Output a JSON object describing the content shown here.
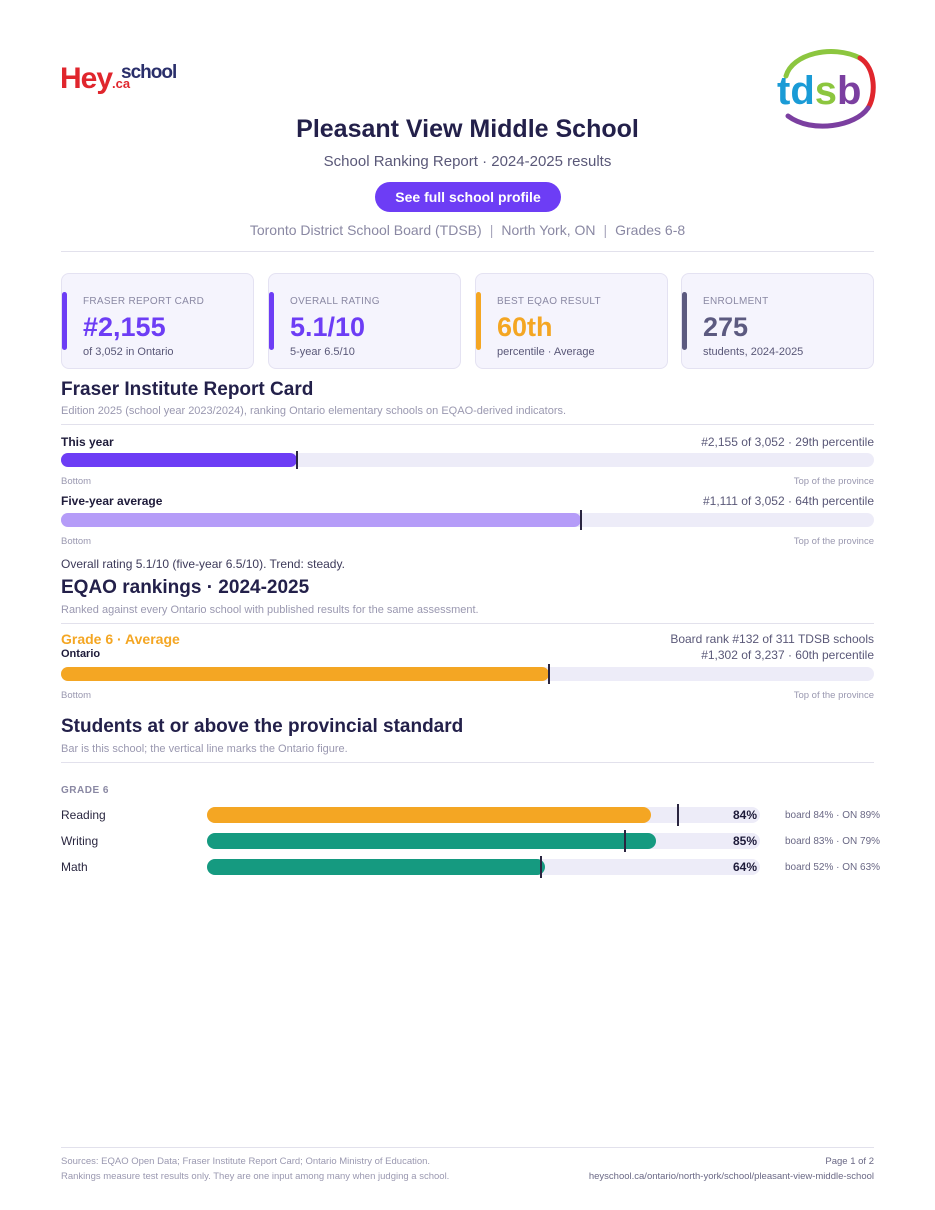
{
  "brand": {
    "logo_part1": "Hey",
    "logo_part2": "school",
    "logo_suffix": ".ca",
    "board_logo": "tdsb"
  },
  "header": {
    "title": "Pleasant View Middle School",
    "subtitle": "School Ranking Report  ·  2024-2025 results",
    "profile_button": "See full school profile",
    "board": "Toronto District School Board (TDSB)",
    "location": "North York, ON",
    "grades": "Grades 6-8"
  },
  "cards": [
    {
      "label": "FRASER REPORT CARD",
      "value": "#2,155",
      "sub": "of 3,052 in Ontario",
      "color": "#6d3df5"
    },
    {
      "label": "OVERALL RATING",
      "value": "5.1/10",
      "sub": "5-year 6.5/10",
      "color": "#6d3df5"
    },
    {
      "label": "BEST EQAO RESULT",
      "value": "60th",
      "sub": "percentile  ·  Average",
      "color": "#f4a623"
    },
    {
      "label": "ENROLMENT",
      "value": "275",
      "sub": "students, 2024-2025",
      "color": "#5c5a80"
    }
  ],
  "fraser": {
    "title": "Fraser Institute Report Card",
    "note": "Edition 2025 (school year 2023/2024), ranking Ontario elementary schools on EQAO-derived indicators.",
    "this_year": {
      "label": "This year",
      "rank": "#2,155 of 3,052  ·  29th percentile",
      "percentile": 29,
      "color": "#6d3df5"
    },
    "five_year": {
      "label": "Five-year average",
      "rank": "#1,111 of 3,052  ·  64th percentile",
      "percentile": 64,
      "color": "#b59cf8"
    },
    "axis_bottom": "Bottom",
    "axis_top": "Top of the province",
    "summary": "Overall rating 5.1/10 (five-year 6.5/10). Trend: steady."
  },
  "eqao": {
    "title": "EQAO rankings  ·  2024-2025",
    "note": "Ranked against every Ontario school with published results for the same assessment.",
    "grade_label": "Grade 6  ·  Average",
    "board_rank": "Board rank #132 of 311 TDSB schools",
    "scope": "Ontario",
    "ontario_rank": "#1,302 of 3,237  ·  60th percentile",
    "percentile": 60,
    "color": "#f4a623",
    "axis_bottom": "Bottom",
    "axis_top": "Top of the province"
  },
  "standard": {
    "title": "Students at or above the provincial standard",
    "note": "Bar is this school; the vertical line marks the Ontario figure.",
    "grade": "GRADE 6",
    "subjects": [
      {
        "name": "Reading",
        "school": 84,
        "ontario": 89,
        "pct_label": "84%",
        "compare": "board 84%  ·  ON 89%",
        "color": "#f4a623"
      },
      {
        "name": "Writing",
        "school": 85,
        "ontario": 79,
        "pct_label": "85%",
        "compare": "board 83%  ·  ON 79%",
        "color": "#159a80"
      },
      {
        "name": "Math",
        "school": 64,
        "ontario": 63,
        "pct_label": "64%",
        "compare": "board 52%  ·  ON 63%",
        "color": "#159a80"
      }
    ]
  },
  "footer": {
    "sources": "Sources: EQAO Open Data; Fraser Institute Report Card; Ontario Ministry of Education.",
    "disclaimer": "Rankings measure test results only. They are one input among many when judging a school.",
    "page": "Page 1 of 2",
    "url": "heyschool.ca/ontario/north-york/school/pleasant-view-middle-school"
  }
}
